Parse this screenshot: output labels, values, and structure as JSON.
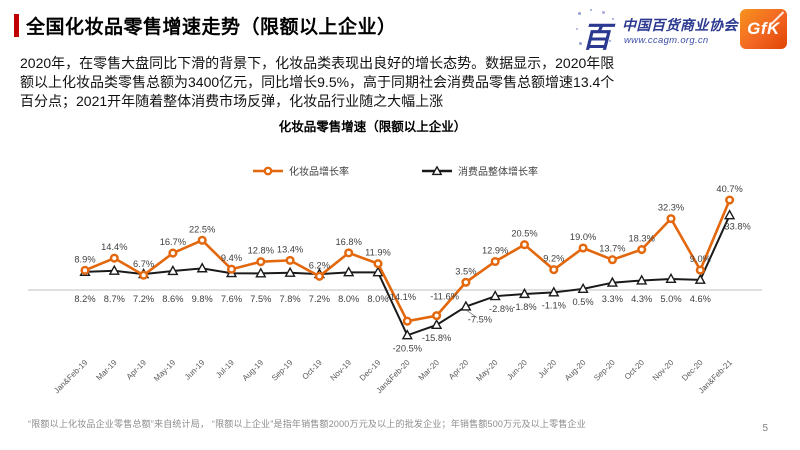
{
  "header": {
    "title": "全国化妆品零售增速走势（限额以上企业）",
    "accent_color": "#C00000"
  },
  "logos": {
    "association_glyph": "百",
    "association_name": "中国百货商业协会",
    "association_url": "www.ccagm.org.cn",
    "gfk_label": "GfK"
  },
  "intro": {
    "lines": [
      "2020年，在零售大盘同比下滑的背景下，化妆品类表现出良好的增长态势。数据显示，2020年限",
      "额以上化妆品类零售总额为3400亿元，同比增长9.5%，高于同期社会消费品零售总额增速13.4个",
      "百分点；2021开年随着整体消费市场反弹，化妆品行业随之大幅上涨"
    ]
  },
  "chart_data": {
    "type": "line",
    "title": "化妆品零售增速（限额以上企业）",
    "categories": [
      "Jan&Feb-19",
      "Mar-19",
      "Apr-19",
      "May-19",
      "Jun-19",
      "Jul-19",
      "Aug-19",
      "Sep-19",
      "Oct-19",
      "Nov-19",
      "Dec-19",
      "Jan&Feb-20",
      "Mar-20",
      "Apr-20",
      "May-20",
      "Jun-20",
      "Jul-20",
      "Aug-20",
      "Sep-20",
      "Oct-20",
      "Nov-20",
      "Dec-20",
      "Jan&Feb-21"
    ],
    "series": [
      {
        "name": "化妆品增长率",
        "color": "#E3670C",
        "marker": "circle",
        "values": [
          8.9,
          14.4,
          6.7,
          16.7,
          22.5,
          9.4,
          12.8,
          13.4,
          6.2,
          16.8,
          11.9,
          -14.1,
          -11.6,
          3.5,
          12.9,
          20.5,
          9.2,
          19.0,
          13.7,
          18.3,
          32.3,
          9.0,
          40.7
        ]
      },
      {
        "name": "消费品整体增长率",
        "color": "#1A1A1A",
        "marker": "triangle",
        "values": [
          8.2,
          8.7,
          7.2,
          8.6,
          9.8,
          7.6,
          7.5,
          7.8,
          7.2,
          8.0,
          8.0,
          -20.5,
          -15.8,
          -7.5,
          -2.8,
          -1.8,
          -1.1,
          0.5,
          3.3,
          4.3,
          5.0,
          4.6,
          33.8
        ]
      }
    ],
    "ylim": [
      -25,
      45
    ],
    "grid": false,
    "legend_position": "top",
    "zero_line_color": "#BFBFBF",
    "label_color": "#404040",
    "axis_label_color": "#595959",
    "label_overrides": {
      "0": {
        "11": [
          -6,
          -21
        ],
        "12": [
          8,
          -16
        ]
      },
      "1": {
        "13": [
          14,
          16
        ],
        "14": [
          6,
          16
        ],
        "22": [
          8,
          14
        ]
      }
    },
    "leader_lines": [
      {
        "series": 1,
        "point": 13,
        "dx": 11,
        "dy": 11
      }
    ]
  },
  "footnote": "“限额以上化妆品企业零售总额”来自统计局， “限额以上企业”是指年销售额2000万元及以上的批发企业；年销售额500万元及以上零售企业",
  "page_number": "5"
}
